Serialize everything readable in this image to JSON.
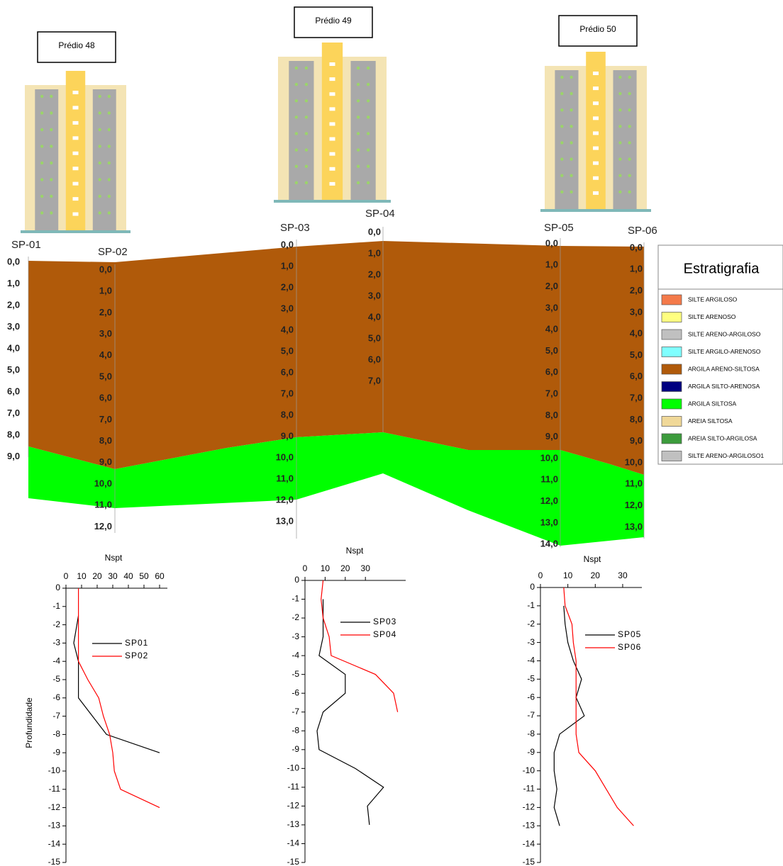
{
  "buildings": [
    "Prédio 48",
    "Prédio 49",
    "Prédio 50"
  ],
  "boreholes": [
    {
      "name": "SP-01",
      "depth_labels": [
        "0,0",
        "1,0",
        "2,0",
        "3,0",
        "4,0",
        "5,0",
        "6,0",
        "7,0",
        "8,0",
        "9,0"
      ]
    },
    {
      "name": "SP-02",
      "depth_labels": [
        "0,0",
        "1,0",
        "2,0",
        "3,0",
        "4,0",
        "5,0",
        "6,0",
        "7,0",
        "8,0",
        "9,0",
        "10,0",
        "11,0",
        "12,0"
      ]
    },
    {
      "name": "SP-03",
      "depth_labels": [
        "0,0",
        "1,0",
        "2,0",
        "3,0",
        "4,0",
        "5,0",
        "6,0",
        "7,0",
        "8,0",
        "9,0",
        "10,0",
        "11,0",
        "12,0",
        "13,0"
      ]
    },
    {
      "name": "SP-04",
      "depth_labels": [
        "0,0",
        "1,0",
        "2,0",
        "3,0",
        "4,0",
        "5,0",
        "6,0",
        "7,0"
      ]
    },
    {
      "name": "SP-05",
      "depth_labels": [
        "0,0",
        "1,0",
        "2,0",
        "3,0",
        "4,0",
        "5,0",
        "6,0",
        "7,0",
        "8,0",
        "9,0",
        "10,0",
        "11,0",
        "12,0",
        "13,0",
        "14,0"
      ]
    },
    {
      "name": "SP-06",
      "depth_labels": [
        "0,0",
        "1,0",
        "2,0",
        "3,0",
        "4,0",
        "5,0",
        "6,0",
        "7,0",
        "8,0",
        "9,0",
        "10,0",
        "11,0",
        "12,0",
        "13,0"
      ]
    }
  ],
  "legend": {
    "title": "Estratigrafia",
    "items": [
      {
        "name": "SILTE ARGILOSO",
        "color": "#f47a4a"
      },
      {
        "name": "SILTE ARENOSO",
        "color": "#ffff80"
      },
      {
        "name": "SILTE ARENO-ARGILOSO",
        "color": "#c0c0c0"
      },
      {
        "name": "SILTE ARGILO-ARENOSO",
        "color": "#80ffff"
      },
      {
        "name": "ARGILA ARENO-SILTOSA",
        "color": "#b05a0a"
      },
      {
        "name": "ARGILA SILTO-ARENOSA",
        "color": "#000080"
      },
      {
        "name": "ARGILA SILTOSA",
        "color": "#00ff00"
      },
      {
        "name": "AREIA SILTOSA",
        "color": "#f0d898"
      },
      {
        "name": "AREIA SILTO-ARGILOSA",
        "color": "#3c9c3c"
      },
      {
        "name": "SILTE ARENO-ARGILOSO1",
        "color": "#c0c0c0"
      }
    ]
  },
  "chart_data": [
    {
      "type": "line",
      "title": "Nspt",
      "ylabel": "Profundidade",
      "xlim": [
        0,
        65
      ],
      "xticks": [
        0,
        10,
        20,
        30,
        40,
        50,
        60
      ],
      "ylim": [
        -15,
        0
      ],
      "yticks": [
        0,
        -1,
        -2,
        -3,
        -4,
        -5,
        -6,
        -7,
        -8,
        -9,
        -10,
        -11,
        -12,
        -13,
        -14,
        -15
      ],
      "series": [
        {
          "name": "SP01",
          "color": "#000000",
          "x": [
            8,
            7,
            5,
            8,
            8,
            8,
            17,
            26,
            60
          ],
          "y": [
            -1.5,
            -2,
            -3,
            -4,
            -5,
            -6,
            -7,
            -8,
            -9
          ]
        },
        {
          "name": "SP02",
          "color": "#ff0000",
          "x": [
            8,
            8,
            8,
            8,
            8,
            14,
            21,
            24,
            28,
            30,
            31,
            35,
            60
          ],
          "y": [
            0,
            -1,
            -2,
            -3,
            -4,
            -5,
            -6,
            -7,
            -8,
            -9,
            -10,
            -11,
            -12
          ]
        }
      ]
    },
    {
      "type": "line",
      "title": "Nspt",
      "xlim": [
        0,
        50
      ],
      "xticks": [
        0,
        10,
        20,
        30
      ],
      "ylim": [
        -15,
        0
      ],
      "yticks": [
        0,
        -1,
        -2,
        -3,
        -4,
        -5,
        -6,
        -7,
        -8,
        -9,
        -10,
        -11,
        -12,
        -13,
        -14,
        -15
      ],
      "series": [
        {
          "name": "SP03",
          "color": "#000000",
          "x": [
            9,
            9,
            9,
            7,
            20,
            20,
            9,
            6,
            7,
            25,
            39,
            31,
            32
          ],
          "y": [
            -1,
            -2,
            -3,
            -4,
            -5,
            -6,
            -7,
            -8,
            -9,
            -10,
            -11,
            -12,
            -13
          ]
        },
        {
          "name": "SP04",
          "color": "#ff0000",
          "x": [
            9,
            8,
            9,
            12,
            13,
            35,
            44,
            46
          ],
          "y": [
            0,
            -1,
            -2,
            -3,
            -4,
            -5,
            -6,
            -7
          ]
        }
      ]
    },
    {
      "type": "line",
      "title": "Nspt",
      "xlim": [
        0,
        37
      ],
      "xticks": [
        0,
        10,
        20,
        30
      ],
      "ylim": [
        -15,
        0
      ],
      "yticks": [
        0,
        -1,
        -2,
        -3,
        -4,
        -5,
        -6,
        -7,
        -8,
        -9,
        -10,
        -11,
        -12,
        -13,
        -14,
        -15
      ],
      "series": [
        {
          "name": "SP05",
          "color": "#000000",
          "x": [
            8.5,
            9,
            10,
            12,
            15,
            13,
            16,
            7,
            5,
            5,
            6,
            5,
            7
          ],
          "y": [
            -1,
            -2,
            -3,
            -4,
            -5,
            -6,
            -7,
            -8,
            -9,
            -10,
            -11,
            -12,
            -13
          ]
        },
        {
          "name": "SP06",
          "color": "#ff0000",
          "x": [
            8.5,
            9,
            11.5,
            12,
            13,
            13,
            13,
            13,
            13,
            14,
            20,
            24,
            28,
            34
          ],
          "y": [
            0,
            -1,
            -2,
            -3,
            -4,
            -5,
            -6,
            -7,
            -8,
            -9,
            -10,
            -11,
            -12,
            -13
          ]
        }
      ]
    }
  ]
}
